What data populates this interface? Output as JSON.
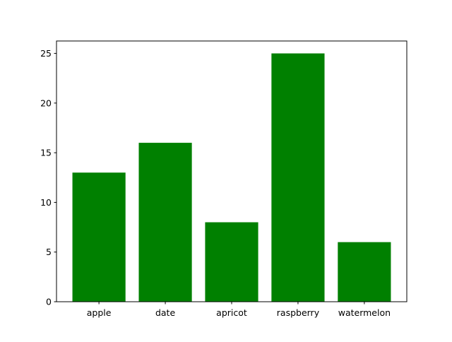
{
  "chart_data": {
    "type": "bar",
    "categories": [
      "apple",
      "date",
      "apricot",
      "raspberry",
      "watermelon"
    ],
    "values": [
      13,
      16,
      8,
      25,
      6
    ],
    "title": "",
    "xlabel": "",
    "ylabel": "",
    "ylim": [
      0,
      26.25
    ],
    "yticks": [
      0,
      5,
      10,
      15,
      20,
      25
    ],
    "grid": false,
    "bar_color": "#008000"
  }
}
